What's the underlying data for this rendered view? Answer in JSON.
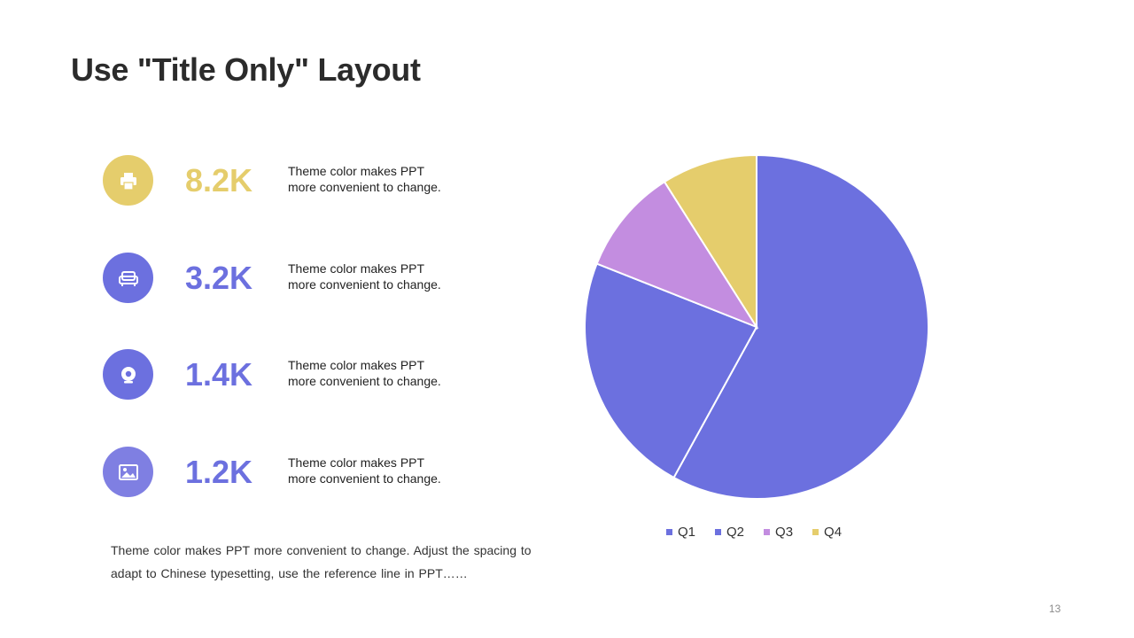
{
  "slide": {
    "title": "Use \"Title Only\" Layout",
    "page_number": "13",
    "footnote": "Theme color makes PPT more convenient to change. Adjust the spacing to adapt to Chinese typesetting, use the reference line in PPT……"
  },
  "stats": [
    {
      "value": "8.2K",
      "line1": "Theme color makes PPT",
      "line2": "more convenient to change.",
      "icon": "printer-icon",
      "icon_color": "#E5CD6C",
      "value_color": "#E5CD6C"
    },
    {
      "value": "3.2K",
      "line1": "Theme color makes PPT",
      "line2": "more convenient to change.",
      "icon": "sofa-icon",
      "icon_color": "#6C70DF",
      "value_color": "#6C70DF"
    },
    {
      "value": "1.4K",
      "line1": "Theme color makes PPT",
      "line2": "more convenient to change.",
      "icon": "webcam-icon",
      "icon_color": "#6C70DF",
      "value_color": "#6C70DF"
    },
    {
      "value": "1.2K",
      "line1": "Theme color makes PPT",
      "line2": "more convenient to change.",
      "icon": "image-icon",
      "icon_color": "#7F7FE2",
      "value_color": "#6C70DF"
    }
  ],
  "chart_data": {
    "type": "pie",
    "categories": [
      "Q1",
      "Q2",
      "Q3",
      "Q4"
    ],
    "values": [
      58,
      23,
      10,
      9
    ],
    "colors": [
      "#6C70DF",
      "#6C70DF",
      "#C38DE0",
      "#E5CD6C"
    ],
    "legend_position": "bottom",
    "start_angle": "12 o'clock, clockwise"
  }
}
